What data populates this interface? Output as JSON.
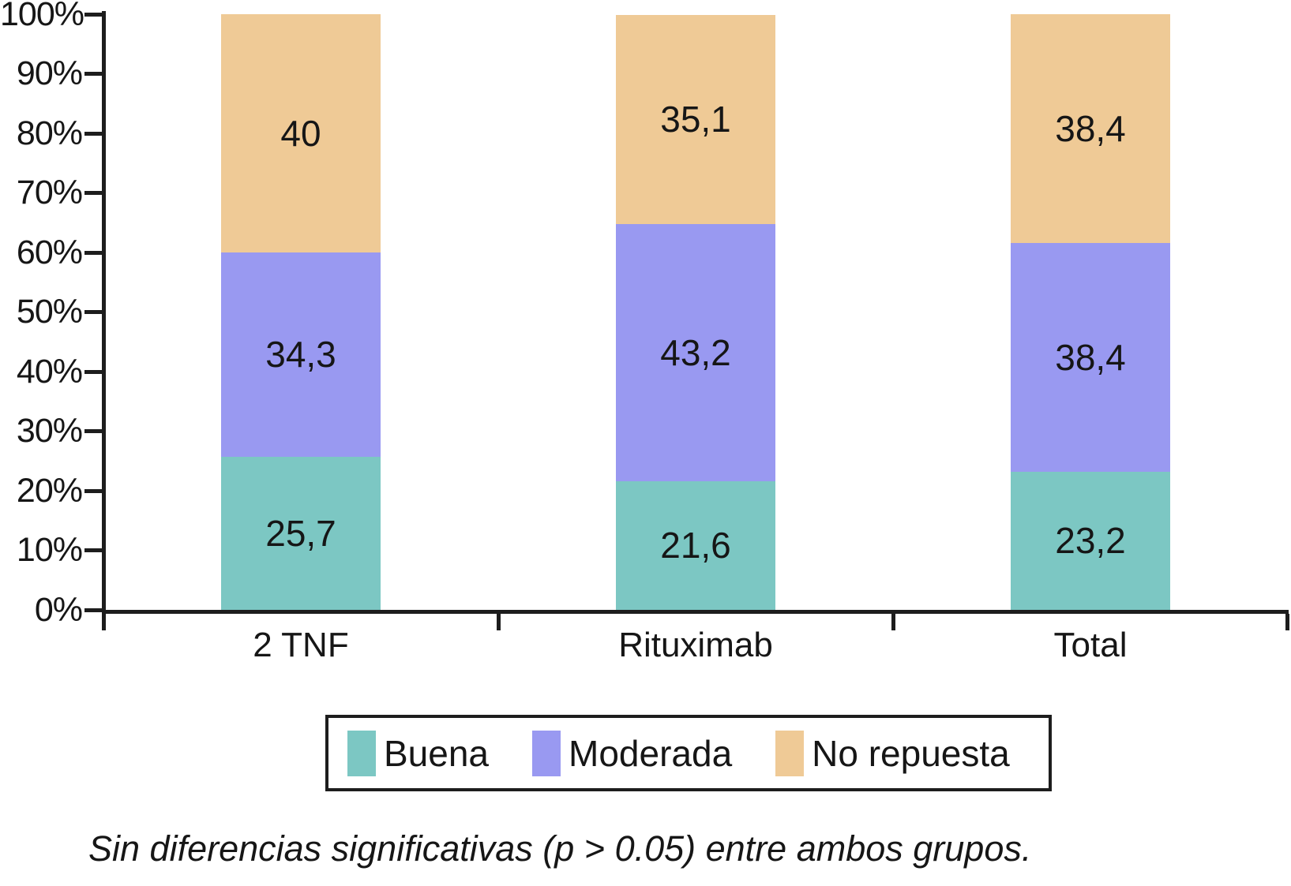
{
  "chart_data": {
    "type": "bar",
    "stacked": true,
    "percent_stacked": true,
    "title": "",
    "xlabel": "",
    "ylabel": "",
    "ylim": [
      0,
      100
    ],
    "grid": false,
    "legend_position": "bottom",
    "categories": [
      "2 TNF",
      "Rituximab",
      "Total"
    ],
    "yticks": [
      "0%",
      "10%",
      "20%",
      "30%",
      "40%",
      "50%",
      "60%",
      "70%",
      "80%",
      "90%",
      "100%"
    ],
    "series": [
      {
        "name": "Buena",
        "color": "#7CC7C3",
        "values": [
          25.7,
          21.6,
          23.2
        ],
        "labels": [
          "25,7",
          "21,6",
          "23,2"
        ]
      },
      {
        "name": "Moderada",
        "color": "#9999F1",
        "values": [
          34.3,
          43.2,
          38.4
        ],
        "labels": [
          "34,3",
          "43,2",
          "38,4"
        ]
      },
      {
        "name": "No repuesta",
        "color": "#EFCA96",
        "values": [
          40,
          35.1,
          38.4
        ],
        "labels": [
          "40",
          "35,1",
          "38,4"
        ]
      }
    ],
    "caption": "Sin diferencias significativas (p > 0.05) entre ambos grupos.",
    "colors": {
      "axis": "#1d1d1d",
      "text": "#161616",
      "background": "#ffffff"
    }
  }
}
